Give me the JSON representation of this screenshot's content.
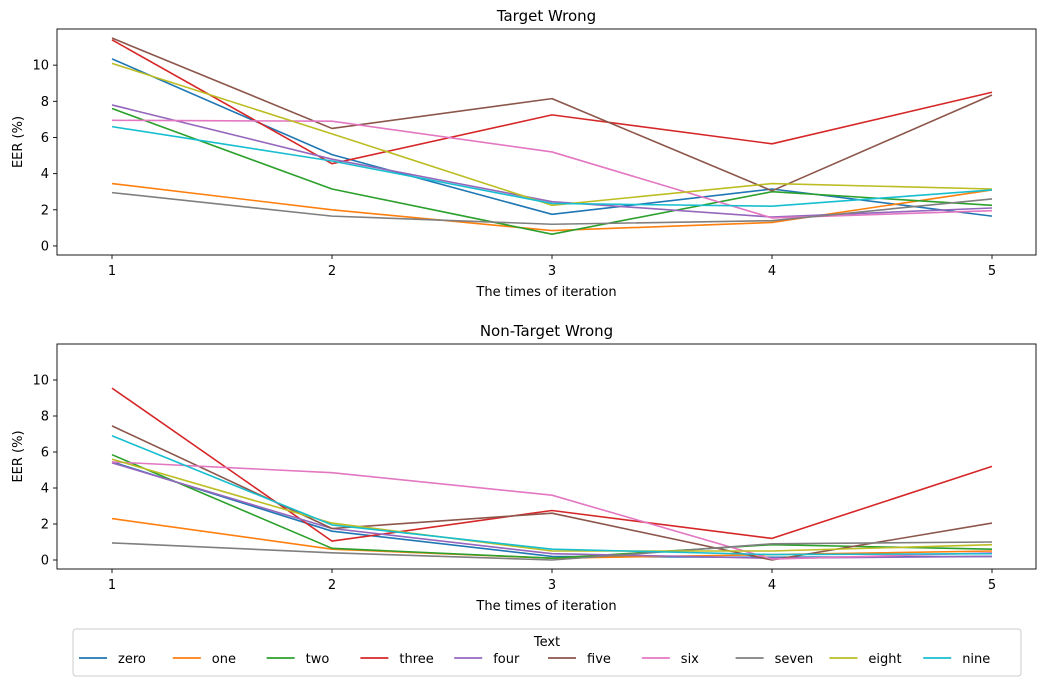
{
  "chart_data": [
    {
      "type": "line",
      "title": "Target Wrong",
      "xlabel": "The times of iteration",
      "ylabel": "EER (%)",
      "x": [
        1,
        2,
        3,
        4,
        5
      ],
      "x_ticks": [
        "1",
        "2",
        "3",
        "4",
        "5"
      ],
      "y_ticks": [
        "0",
        "2",
        "4",
        "6",
        "8",
        "10"
      ],
      "xlim": [
        0.75,
        5.2
      ],
      "ylim": [
        -0.5,
        12.0
      ],
      "grid": false,
      "series": [
        {
          "name": "zero",
          "color": "#1f77b4",
          "values": [
            10.35,
            5.05,
            1.75,
            3.15,
            1.65
          ]
        },
        {
          "name": "one",
          "color": "#ff7f0e",
          "values": [
            3.45,
            2.0,
            0.85,
            1.3,
            3.1
          ]
        },
        {
          "name": "two",
          "color": "#2ca02c",
          "values": [
            7.6,
            3.15,
            0.65,
            3.0,
            2.25
          ]
        },
        {
          "name": "three",
          "color": "#d62728",
          "values": [
            11.4,
            4.55,
            7.25,
            5.65,
            8.5
          ]
        },
        {
          "name": "four",
          "color": "#9467bd",
          "values": [
            7.8,
            4.8,
            2.45,
            1.6,
            2.1
          ]
        },
        {
          "name": "five",
          "color": "#8c564b",
          "values": [
            11.5,
            6.5,
            8.15,
            3.05,
            8.35
          ]
        },
        {
          "name": "six",
          "color": "#e377c2",
          "values": [
            6.95,
            6.9,
            5.2,
            1.55,
            1.95
          ]
        },
        {
          "name": "seven",
          "color": "#7f7f7f",
          "values": [
            2.95,
            1.65,
            1.2,
            1.4,
            2.6
          ]
        },
        {
          "name": "eight",
          "color": "#bcbd22",
          "values": [
            10.1,
            6.2,
            2.25,
            3.45,
            3.15
          ]
        },
        {
          "name": "nine",
          "color": "#17becf",
          "values": [
            6.6,
            4.7,
            2.35,
            2.2,
            3.1
          ]
        }
      ]
    },
    {
      "type": "line",
      "title": "Non-Target Wrong",
      "xlabel": "The times of iteration",
      "ylabel": "EER (%)",
      "x": [
        1,
        2,
        3,
        4,
        5
      ],
      "x_ticks": [
        "1",
        "2",
        "3",
        "4",
        "5"
      ],
      "y_ticks": [
        "0",
        "2",
        "4",
        "6",
        "8",
        "10"
      ],
      "xlim": [
        0.75,
        5.2
      ],
      "ylim": [
        -0.5,
        12.0
      ],
      "grid": false,
      "series": [
        {
          "name": "zero",
          "color": "#1f77b4",
          "values": [
            5.45,
            1.6,
            0.2,
            0.15,
            0.2
          ]
        },
        {
          "name": "one",
          "color": "#ff7f0e",
          "values": [
            2.3,
            0.6,
            0.1,
            0.3,
            0.5
          ]
        },
        {
          "name": "two",
          "color": "#2ca02c",
          "values": [
            5.85,
            0.65,
            0.1,
            0.85,
            0.6
          ]
        },
        {
          "name": "three",
          "color": "#d62728",
          "values": [
            9.55,
            1.05,
            2.75,
            1.2,
            5.2
          ]
        },
        {
          "name": "four",
          "color": "#9467bd",
          "values": [
            5.4,
            1.75,
            0.35,
            0.1,
            0.2
          ]
        },
        {
          "name": "five",
          "color": "#8c564b",
          "values": [
            7.45,
            1.75,
            2.6,
            0.0,
            2.05
          ]
        },
        {
          "name": "six",
          "color": "#e377c2",
          "values": [
            5.45,
            4.85,
            3.6,
            0.05,
            0.4
          ]
        },
        {
          "name": "seven",
          "color": "#7f7f7f",
          "values": [
            0.95,
            0.4,
            0.0,
            0.9,
            1.0
          ]
        },
        {
          "name": "eight",
          "color": "#bcbd22",
          "values": [
            5.6,
            2.05,
            0.5,
            0.5,
            0.85
          ]
        },
        {
          "name": "nine",
          "color": "#17becf",
          "values": [
            6.9,
            1.95,
            0.6,
            0.3,
            0.35
          ]
        }
      ]
    }
  ],
  "legend": {
    "title": "Text",
    "placement": "bottom-center",
    "entries": [
      "zero",
      "one",
      "two",
      "three",
      "four",
      "five",
      "six",
      "seven",
      "eight",
      "nine"
    ]
  }
}
